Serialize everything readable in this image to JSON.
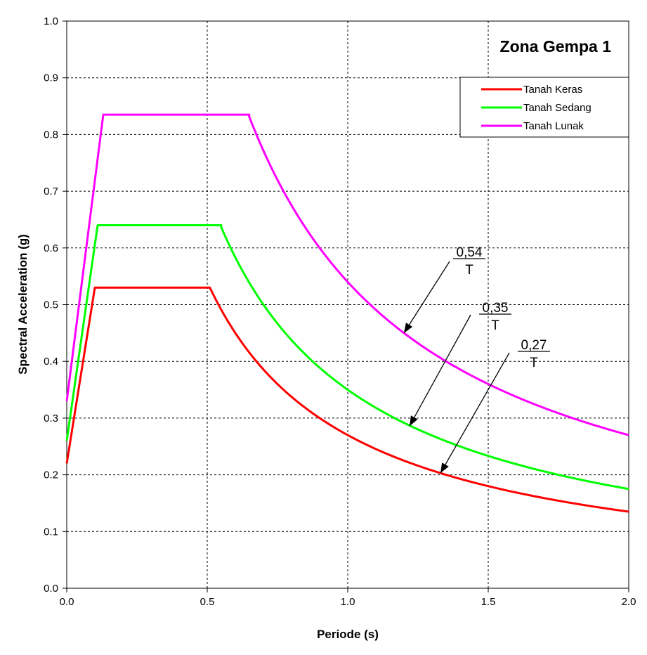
{
  "chart_data": {
    "type": "line",
    "title": "Zona Gempa 1",
    "xlabel": "Periode (s)",
    "ylabel": "Spectral Acceleration (g)",
    "xlim": [
      0,
      2.0
    ],
    "ylim": [
      0,
      1.0
    ],
    "x_ticks": [
      "0.0",
      "0.5",
      "1.0",
      "1.5",
      "2.0"
    ],
    "y_ticks": [
      "0.0",
      "0.1",
      "0.2",
      "0.3",
      "0.4",
      "0.5",
      "0.6",
      "0.7",
      "0.8",
      "0.9",
      "1.0"
    ],
    "grid": true,
    "legend_position": "top-right",
    "series": [
      {
        "name": "Tanah Keras",
        "color": "#ff0000",
        "a0": 0.22,
        "plateau": 0.53,
        "T0": 0.1,
        "Tc": 0.5,
        "C": 0.27
      },
      {
        "name": "Tanah Sedang",
        "color": "#00ff00",
        "a0": 0.26,
        "plateau": 0.64,
        "T0": 0.11,
        "Tc": 0.55,
        "C": 0.35
      },
      {
        "name": "Tanah Lunak",
        "color": "#ff00ff",
        "a0": 0.33,
        "plateau": 0.835,
        "T0": 0.13,
        "Tc": 0.65,
        "C": 0.54
      }
    ],
    "annotations": [
      {
        "numerator": "0,54",
        "denominator": "T",
        "x_point": 1.2,
        "y_point": 0.45
      },
      {
        "numerator": "0,35",
        "denominator": "T",
        "x_point": 1.22,
        "y_point": 0.286
      },
      {
        "numerator": "0,27",
        "denominator": "T",
        "x_point": 1.33,
        "y_point": 0.203
      }
    ]
  }
}
